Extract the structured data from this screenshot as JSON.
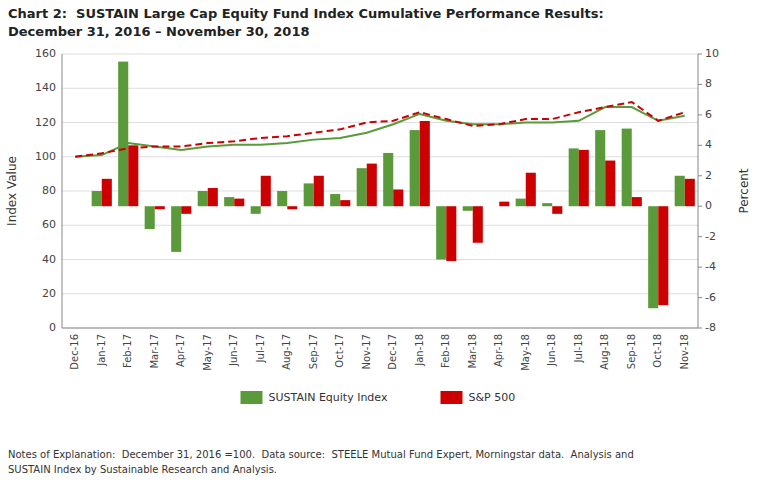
{
  "chart_data": {
    "type": "bar",
    "title": "Chart 2:  SUSTAIN Large Cap Equity Fund Index Cumulative Performance Results:",
    "subtitle": "December 31, 2016 – November 30, 2018",
    "categories": [
      "Dec-16",
      "Jan-17",
      "Feb-17",
      "Mar-17",
      "Apr-17",
      "May-17",
      "Jun-17",
      "Jul-17",
      "Aug-17",
      "Sep-17",
      "Oct-17",
      "Nov-17",
      "Dec-17",
      "Jan-18",
      "Feb-18",
      "Mar-18",
      "Apr-18",
      "May-18",
      "Jun-18",
      "Jul-18",
      "Aug-18",
      "Sep-18",
      "Oct-18",
      "Nov-18"
    ],
    "series": [
      {
        "name": "SUSTAIN Equity Index",
        "type": "bar",
        "axis": "y2",
        "color": "#5a9a3a",
        "values": [
          0.0,
          1.0,
          9.5,
          -1.5,
          -3.0,
          1.0,
          0.6,
          -0.5,
          1.0,
          1.5,
          0.8,
          2.5,
          3.5,
          5.0,
          -3.5,
          -0.3,
          0.0,
          0.5,
          0.2,
          3.8,
          5.0,
          5.1,
          -6.7,
          2.0
        ]
      },
      {
        "name": "S&P 500",
        "type": "bar",
        "axis": "y2",
        "color": "#cc0000",
        "values": [
          0.0,
          1.8,
          4.0,
          -0.2,
          -0.5,
          1.2,
          0.5,
          2.0,
          -0.2,
          2.0,
          0.4,
          2.8,
          1.1,
          5.6,
          -3.6,
          -2.4,
          0.3,
          2.2,
          -0.5,
          3.7,
          3.0,
          0.6,
          -6.5,
          1.8
        ]
      },
      {
        "type": "line",
        "color": "#5a9a3a",
        "line_style": "solid",
        "values": [
          100,
          101,
          108,
          106,
          104,
          106,
          107,
          107,
          108,
          110,
          111,
          114,
          119,
          125,
          121,
          119,
          119,
          120,
          120,
          121,
          129,
          129,
          121,
          124
        ]
      },
      {
        "type": "line",
        "color": "#cc0000",
        "line_style": "dashed",
        "values": [
          100,
          102,
          105,
          106,
          106,
          108,
          109,
          111,
          112,
          114,
          116,
          120,
          121,
          126,
          122,
          118,
          119,
          122,
          122,
          126,
          129,
          132,
          121,
          126
        ]
      }
    ],
    "y_label": "Index Value",
    "y2_label": "Percent",
    "ylim": [
      0,
      160
    ],
    "yticks": [
      0,
      20,
      40,
      60,
      80,
      100,
      120,
      140,
      160
    ],
    "y2lim": [
      -8,
      10
    ],
    "y2ticks": [
      -8,
      -6,
      -4,
      -2,
      0,
      2,
      4,
      6,
      8,
      10
    ],
    "grid": true,
    "legend": "bottom",
    "footnote": "Notes of Explanation:  December 31, 2016 =100.  Data source:  STEELE Mutual Fund Expert, Morningstar data.  Analysis and\nSUSTAIN Index by Sustainable Research and Analysis."
  }
}
